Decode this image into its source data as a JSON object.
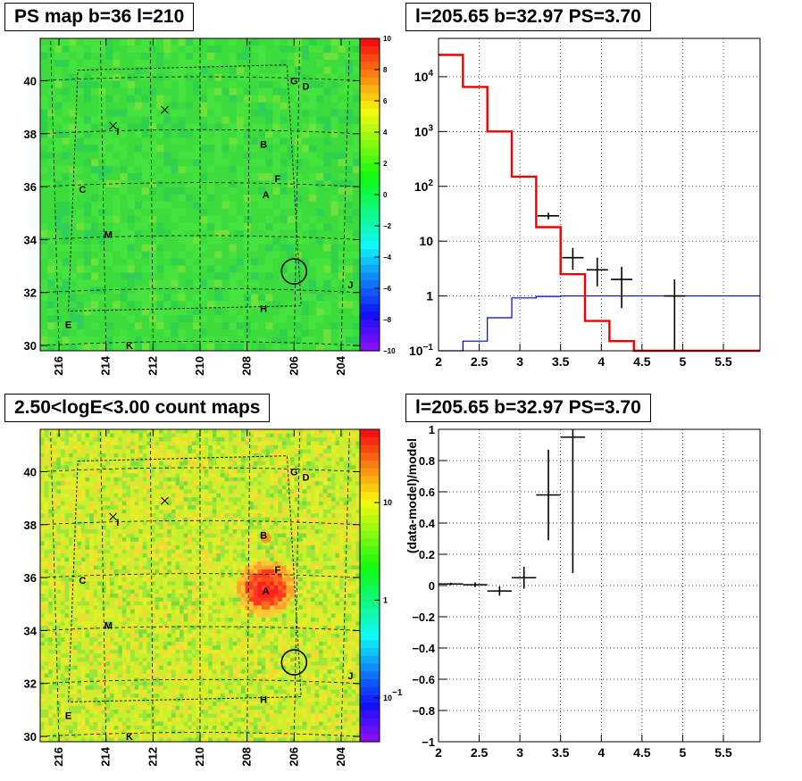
{
  "chart_data": [
    {
      "id": "ps-map",
      "type": "heatmap",
      "title": "PS map b=36 l=210",
      "x_ticks": [
        "216",
        "214",
        "212",
        "210",
        "208",
        "206",
        "204"
      ],
      "y_ticks": [
        "30",
        "32",
        "34",
        "36",
        "38",
        "40"
      ],
      "xlim": [
        203.2,
        216.8
      ],
      "ylim": [
        29.8,
        41.6
      ],
      "colorbar": {
        "scale": "linear",
        "min": -10,
        "max": 10,
        "ticks": [
          "10",
          "8",
          "6",
          "4",
          "2",
          "0",
          "−2",
          "−4",
          "−6",
          "−8",
          "−10"
        ]
      },
      "source_labels": [
        {
          "text": "A",
          "x": 207.2,
          "y": 35.7
        },
        {
          "text": "B",
          "x": 207.3,
          "y": 37.6
        },
        {
          "text": "C",
          "x": 215.0,
          "y": 35.9
        },
        {
          "text": "D",
          "x": 205.5,
          "y": 39.8
        },
        {
          "text": "E",
          "x": 215.6,
          "y": 30.8
        },
        {
          "text": "F",
          "x": 206.7,
          "y": 36.3
        },
        {
          "text": "G",
          "x": 206.0,
          "y": 40.0
        },
        {
          "text": "H",
          "x": 207.3,
          "y": 31.4
        },
        {
          "text": "I",
          "x": 213.5,
          "y": 38.1
        },
        {
          "text": "J",
          "x": 203.6,
          "y": 32.3
        },
        {
          "text": "K",
          "x": 213.0,
          "y": 30.0
        },
        {
          "text": "M",
          "x": 213.9,
          "y": 34.2
        }
      ],
      "crosses": [
        {
          "x": 213.7,
          "y": 38.3
        },
        {
          "x": 211.5,
          "y": 38.9
        }
      ],
      "circle": {
        "x": 206.0,
        "y": 32.8
      }
    },
    {
      "id": "spectrum",
      "type": "line",
      "title": "l=205.65 b=32.97 PS=3.70",
      "xlim": [
        2,
        5.95
      ],
      "ylim": [
        0.1,
        50000
      ],
      "yscale": "log",
      "x_ticks": [
        "2",
        "2.5",
        "3",
        "3.5",
        "4",
        "4.5",
        "5",
        "5.5"
      ],
      "y_ticks": [
        {
          "v": 10000,
          "base": "10",
          "exp": "4"
        },
        {
          "v": 1000,
          "base": "10",
          "exp": "3"
        },
        {
          "v": 100,
          "base": "10",
          "exp": "2"
        },
        {
          "v": 10,
          "base": "10",
          "exp": ""
        },
        {
          "v": 1,
          "base": "1",
          "exp": ""
        },
        {
          "v": 0.1,
          "base": "10",
          "exp": "−1"
        }
      ],
      "model_red": {
        "edges": [
          2.0,
          2.3,
          2.6,
          2.9,
          3.2,
          3.5,
          3.8,
          4.1,
          4.4,
          5.95
        ],
        "values": [
          25000,
          6500,
          1000,
          150,
          18,
          2.5,
          0.35,
          0.15,
          0.1
        ]
      },
      "model_blue": {
        "edges": [
          2.0,
          2.3,
          2.6,
          2.9,
          3.2,
          3.5,
          5.95
        ],
        "values": [
          0.1,
          0.15,
          0.4,
          0.92,
          0.98,
          1.0
        ]
      },
      "data_points": [
        {
          "x": 3.35,
          "y": 29,
          "ylo": 25,
          "yhi": 33
        },
        {
          "x": 3.65,
          "y": 5,
          "ylo": 3,
          "yhi": 7.5
        },
        {
          "x": 3.95,
          "y": 3,
          "ylo": 1.5,
          "yhi": 5
        },
        {
          "x": 4.25,
          "y": 2,
          "ylo": 0.6,
          "yhi": 3.4
        },
        {
          "x": 4.9,
          "y": 1,
          "ylo": 0.1,
          "yhi": 2
        }
      ]
    },
    {
      "id": "count-map",
      "type": "heatmap",
      "title": "2.50<logE<3.00 count maps",
      "x_ticks": [
        "216",
        "214",
        "212",
        "210",
        "208",
        "206",
        "204"
      ],
      "y_ticks": [
        "30",
        "32",
        "34",
        "36",
        "38",
        "40"
      ],
      "xlim": [
        203.2,
        216.8
      ],
      "ylim": [
        29.8,
        41.6
      ],
      "colorbar": {
        "scale": "log",
        "ticks": [
          {
            "v": 10,
            "base": "10",
            "exp": ""
          },
          {
            "v": 1,
            "base": "1",
            "exp": ""
          },
          {
            "v": 0.1,
            "base": "10",
            "exp": "−1"
          }
        ]
      },
      "source_labels": [
        {
          "text": "A",
          "x": 207.2,
          "y": 35.5
        },
        {
          "text": "B",
          "x": 207.3,
          "y": 37.6
        },
        {
          "text": "C",
          "x": 215.0,
          "y": 35.9
        },
        {
          "text": "D",
          "x": 205.5,
          "y": 39.8
        },
        {
          "text": "E",
          "x": 215.6,
          "y": 30.8
        },
        {
          "text": "F",
          "x": 206.7,
          "y": 36.3
        },
        {
          "text": "G",
          "x": 206.0,
          "y": 40.0
        },
        {
          "text": "H",
          "x": 207.3,
          "y": 31.4
        },
        {
          "text": "I",
          "x": 213.5,
          "y": 38.1
        },
        {
          "text": "J",
          "x": 203.6,
          "y": 32.3
        },
        {
          "text": "K",
          "x": 213.0,
          "y": 30.0
        },
        {
          "text": "M",
          "x": 213.9,
          "y": 34.2
        }
      ],
      "crosses": [
        {
          "x": 213.7,
          "y": 38.3
        },
        {
          "x": 211.5,
          "y": 38.9
        }
      ],
      "circle": {
        "x": 206.0,
        "y": 32.8
      }
    },
    {
      "id": "residual",
      "type": "scatter",
      "title": "l=205.65 b=32.97 PS=3.70",
      "ylabel": "(data-model)/model",
      "xlim": [
        2,
        5.95
      ],
      "ylim": [
        -1,
        1
      ],
      "x_ticks": [
        "2",
        "2.5",
        "3",
        "3.5",
        "4",
        "4.5",
        "5",
        "5.5"
      ],
      "y_ticks": [
        "1",
        "0.8",
        "0.6",
        "0.4",
        "0.2",
        "0",
        "−0.2",
        "−0.4",
        "−0.6",
        "−0.8",
        "−1"
      ],
      "data_points": [
        {
          "x": 2.15,
          "xlo": 2.0,
          "xhi": 2.3,
          "y": 0.01,
          "yerr": 0.008
        },
        {
          "x": 2.45,
          "xlo": 2.3,
          "xhi": 2.6,
          "y": 0.005,
          "yerr": 0.015
        },
        {
          "x": 2.75,
          "xlo": 2.6,
          "xhi": 2.9,
          "y": -0.035,
          "yerr": 0.03
        },
        {
          "x": 3.05,
          "xlo": 2.9,
          "xhi": 3.2,
          "y": 0.05,
          "yerr": 0.07
        },
        {
          "x": 3.35,
          "xlo": 3.2,
          "xhi": 3.5,
          "y": 0.58,
          "yerr": 0.29
        },
        {
          "x": 3.65,
          "xlo": 3.5,
          "xhi": 3.8,
          "y": 0.95,
          "yerr": 0.87
        }
      ]
    }
  ]
}
